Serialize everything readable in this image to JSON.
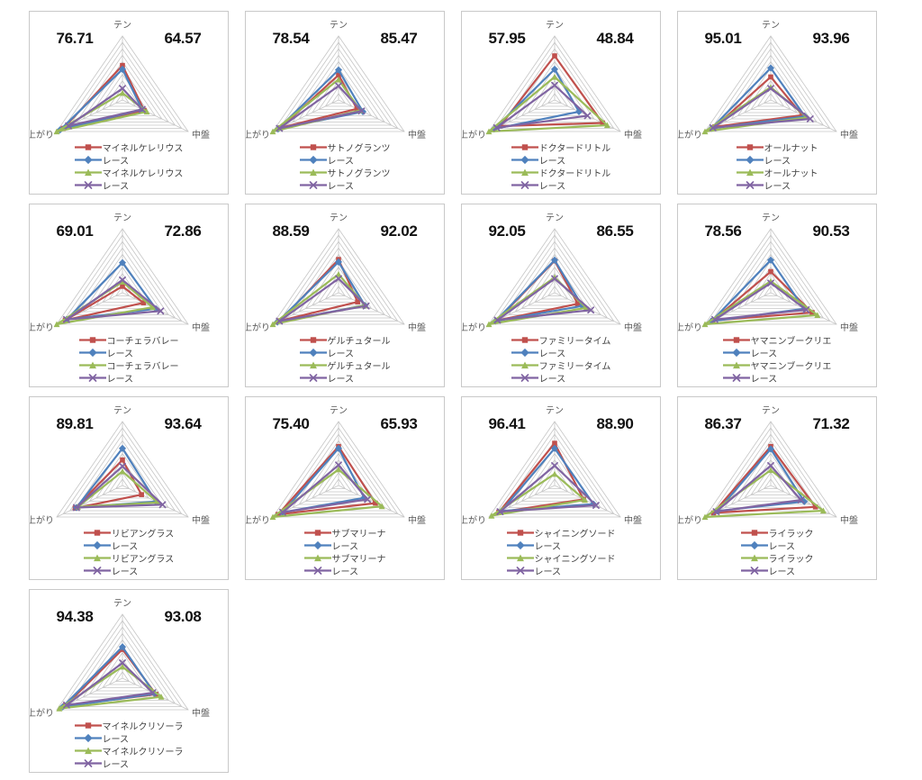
{
  "page": {
    "background": "#ffffff"
  },
  "axis_labels": {
    "top": "テン",
    "right": "中盤",
    "left": "上がり"
  },
  "grid": {
    "rings": 10,
    "color": "#c6c6c6"
  },
  "text_colors": {
    "score": "#111111",
    "axis": "#595959",
    "legend": "#3f3f3f"
  },
  "series_style": [
    {
      "marker": "square",
      "color": "#c0504d"
    },
    {
      "marker": "diamond",
      "color": "#4f81bd"
    },
    {
      "marker": "triangle",
      "color": "#9bbb59"
    },
    {
      "marker": "x",
      "color": "#8064a2"
    }
  ],
  "chart_data": [
    {
      "type": "radar",
      "left_score": "76.71",
      "right_score": "64.57",
      "axes": [
        "テン",
        "中盤",
        "上がり"
      ],
      "axis_range": [
        0,
        100
      ],
      "series": [
        {
          "name": "マイネルケレリウス",
          "values": [
            54,
            33,
            90
          ]
        },
        {
          "name": "レース",
          "values": [
            48,
            30,
            95
          ]
        },
        {
          "name": "マイネルケレリウス",
          "values": [
            11,
            37,
            100
          ]
        },
        {
          "name": "レース",
          "values": [
            18,
            30,
            82
          ]
        }
      ]
    },
    {
      "type": "radar",
      "left_score": "78.54",
      "right_score": "85.47",
      "axes": [
        "テン",
        "中盤",
        "上がり"
      ],
      "axis_range": [
        0,
        100
      ],
      "series": [
        {
          "name": "サトノグランツ",
          "values": [
            39,
            28,
            88
          ]
        },
        {
          "name": "レース",
          "values": [
            47,
            37,
            92
          ]
        },
        {
          "name": "サトノグランツ",
          "values": [
            32,
            33,
            100
          ]
        },
        {
          "name": "レース",
          "values": [
            22,
            35,
            90
          ]
        }
      ]
    },
    {
      "type": "radar",
      "left_score": "57.95",
      "right_score": "48.84",
      "axes": [
        "テン",
        "中盤",
        "上がり"
      ],
      "axis_range": [
        0,
        100
      ],
      "series": [
        {
          "name": "ドクタードリトル",
          "values": [
            69,
            73,
            83
          ]
        },
        {
          "name": "レース",
          "values": [
            48,
            37,
            92
          ]
        },
        {
          "name": "ドクタードリトル",
          "values": [
            36,
            80,
            100
          ]
        },
        {
          "name": "レース",
          "values": [
            23,
            50,
            88
          ]
        }
      ]
    },
    {
      "type": "radar",
      "left_score": "95.01",
      "right_score": "93.96",
      "axes": [
        "テン",
        "中盤",
        "上がり"
      ],
      "axis_range": [
        0,
        100
      ],
      "series": [
        {
          "name": "オールナット",
          "values": [
            36,
            48,
            85
          ]
        },
        {
          "name": "レース",
          "values": [
            50,
            52,
            90
          ]
        },
        {
          "name": "オールナット",
          "values": [
            20,
            55,
            100
          ]
        },
        {
          "name": "レース",
          "values": [
            18,
            60,
            88
          ]
        }
      ]
    },
    {
      "type": "radar",
      "left_score": "69.01",
      "right_score": "72.86",
      "axes": [
        "テン",
        "中盤",
        "上がり"
      ],
      "axis_range": [
        0,
        100
      ],
      "series": [
        {
          "name": "コーチェラバレー",
          "values": [
            10,
            32,
            87
          ]
        },
        {
          "name": "レース",
          "values": [
            47,
            51,
            85
          ]
        },
        {
          "name": "コーチェラバレー",
          "values": [
            17,
            46,
            100
          ]
        },
        {
          "name": "レース",
          "values": [
            20,
            58,
            85
          ]
        }
      ]
    },
    {
      "type": "radar",
      "left_score": "88.59",
      "right_score": "92.02",
      "axes": [
        "テン",
        "中盤",
        "上がり"
      ],
      "axis_range": [
        0,
        100
      ],
      "series": [
        {
          "name": "ゲルチュタール",
          "values": [
            52,
            29,
            89
          ]
        },
        {
          "name": "レース",
          "values": [
            48,
            40,
            93
          ]
        },
        {
          "name": "ゲルチュタール",
          "values": [
            29,
            40,
            100
          ]
        },
        {
          "name": "レース",
          "values": [
            22,
            42,
            90
          ]
        }
      ]
    },
    {
      "type": "radar",
      "left_score": "92.05",
      "right_score": "86.55",
      "axes": [
        "テン",
        "中盤",
        "上がり"
      ],
      "axis_range": [
        0,
        100
      ],
      "series": [
        {
          "name": "ファミリータイム",
          "values": [
            50,
            35,
            88
          ]
        },
        {
          "name": "レース",
          "values": [
            51,
            42,
            90
          ]
        },
        {
          "name": "ファミリータイム",
          "values": [
            24,
            48,
            100
          ]
        },
        {
          "name": "レース",
          "values": [
            22,
            55,
            87
          ]
        }
      ]
    },
    {
      "type": "radar",
      "left_score": "78.56",
      "right_score": "90.53",
      "axes": [
        "テン",
        "中盤",
        "上がり"
      ],
      "axis_range": [
        0,
        100
      ],
      "series": [
        {
          "name": "ヤマニンブークリエ",
          "values": [
            33,
            63,
            88
          ]
        },
        {
          "name": "レース",
          "values": [
            51,
            51,
            90
          ]
        },
        {
          "name": "ヤマニンブークリエ",
          "values": [
            18,
            71,
            100
          ]
        },
        {
          "name": "レース",
          "values": [
            15,
            54,
            85
          ]
        }
      ]
    },
    {
      "type": "radar",
      "left_score": "89.81",
      "right_score": "93.64",
      "axes": [
        "テン",
        "中盤",
        "上がり"
      ],
      "axis_range": [
        0,
        100
      ],
      "series": [
        {
          "name": "リビアングラス",
          "values": [
            40,
            29,
            72
          ]
        },
        {
          "name": "レース",
          "values": [
            58,
            51,
            70
          ]
        },
        {
          "name": "リビアングラス",
          "values": [
            22,
            54,
            68
          ]
        },
        {
          "name": "レース",
          "values": [
            30,
            61,
            70
          ]
        }
      ]
    },
    {
      "type": "radar",
      "left_score": "75.40",
      "right_score": "65.93",
      "axes": [
        "テン",
        "中盤",
        "上がり"
      ],
      "axis_range": [
        0,
        100
      ],
      "series": [
        {
          "name": "サブマリーナ",
          "values": [
            61,
            56,
            92
          ]
        },
        {
          "name": "レース",
          "values": [
            58,
            39,
            85
          ]
        },
        {
          "name": "サブマリーナ",
          "values": [
            25,
            66,
            100
          ]
        },
        {
          "name": "レース",
          "values": [
            32,
            44,
            85
          ]
        }
      ]
    },
    {
      "type": "radar",
      "left_score": "96.41",
      "right_score": "88.90",
      "axes": [
        "テン",
        "中盤",
        "上がり"
      ],
      "axis_range": [
        0,
        100
      ],
      "series": [
        {
          "name": "シャイニングソード",
          "values": [
            66,
            44,
            85
          ]
        },
        {
          "name": "レース",
          "values": [
            58,
            59,
            81
          ]
        },
        {
          "name": "シャイニングソード",
          "values": [
            18,
            46,
            96
          ]
        },
        {
          "name": "レース",
          "values": [
            31,
            63,
            83
          ]
        }
      ]
    },
    {
      "type": "radar",
      "left_score": "86.37",
      "right_score": "71.32",
      "axes": [
        "テン",
        "中盤",
        "上がり"
      ],
      "axis_range": [
        0,
        100
      ],
      "series": [
        {
          "name": "ライラック",
          "values": [
            61,
            68,
            87
          ]
        },
        {
          "name": "レース",
          "values": [
            57,
            51,
            81
          ]
        },
        {
          "name": "ライラック",
          "values": [
            24,
            80,
            100
          ]
        },
        {
          "name": "レース",
          "values": [
            31,
            46,
            83
          ]
        }
      ]
    },
    {
      "type": "radar",
      "left_score": "94.38",
      "right_score": "93.08",
      "axes": [
        "テン",
        "中盤",
        "上がり"
      ],
      "axis_range": [
        0,
        100
      ],
      "series": [
        {
          "name": "マイネルクリソーラ",
          "values": [
            45,
            51,
            87
          ]
        },
        {
          "name": "レース",
          "values": [
            49,
            49,
            91
          ]
        },
        {
          "name": "マイネルクリソーラ",
          "values": [
            18,
            59,
            96
          ]
        },
        {
          "name": "レース",
          "values": [
            24,
            46,
            85
          ]
        }
      ]
    }
  ]
}
